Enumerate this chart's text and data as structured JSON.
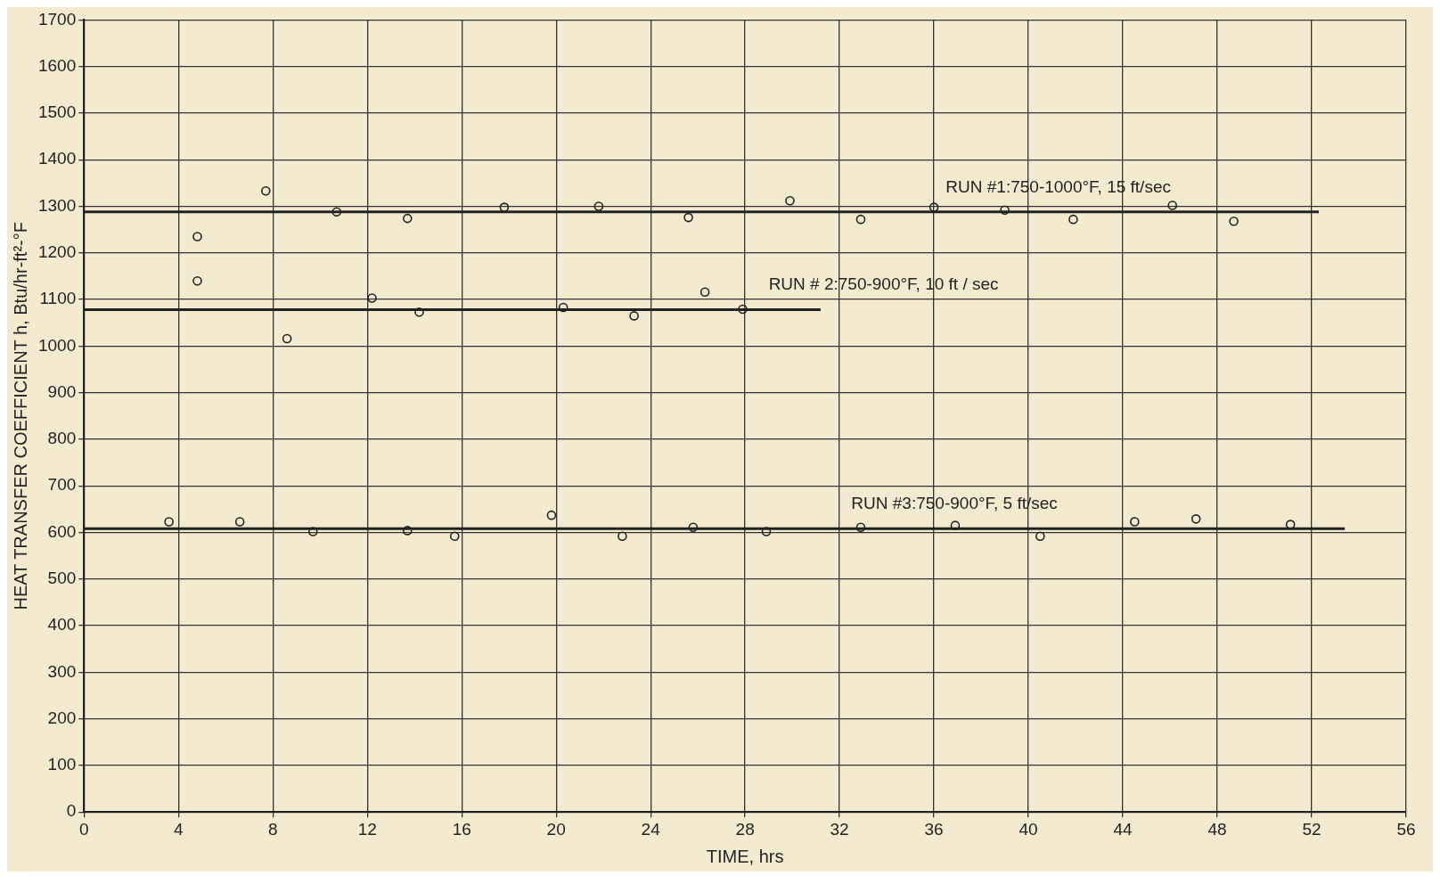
{
  "chart_data": {
    "type": "scatter",
    "xlabel": "TIME, hrs",
    "ylabel": "HEAT TRANSFER COEFFICIENT h, Btu/hr-ft²-°F",
    "xlim": [
      0,
      56
    ],
    "xticks": [
      0,
      4,
      8,
      12,
      16,
      20,
      24,
      28,
      32,
      36,
      40,
      44,
      48,
      52,
      56
    ],
    "ylim": [
      0,
      1700
    ],
    "yticks": [
      0,
      100,
      200,
      300,
      400,
      500,
      600,
      700,
      800,
      900,
      1000,
      1100,
      1200,
      1300,
      1400,
      1500,
      1600,
      1700
    ],
    "grid": true,
    "legend": false,
    "marker": "circle",
    "series": [
      {
        "type": "scatter",
        "color": "#222222",
        "x": [
          4.8,
          7.7,
          10.7,
          13.7,
          17.8,
          21.8,
          25.6,
          29.9,
          32.9,
          36.0,
          39.0,
          41.9,
          46.1,
          48.7
        ],
        "values": [
          1235,
          1333,
          1288,
          1274,
          1298,
          1300,
          1276,
          1312,
          1272,
          1298,
          1292,
          1272,
          1302,
          1268
        ]
      },
      {
        "type": "scatter",
        "color": "#222222",
        "x": [
          4.8,
          8.6,
          12.2,
          14.2,
          20.3,
          23.3,
          26.3,
          27.9
        ],
        "values": [
          1140,
          1016,
          1103,
          1073,
          1083,
          1065,
          1116,
          1079
        ]
      },
      {
        "type": "scatter",
        "color": "#222222",
        "x": [
          3.6,
          6.6,
          9.7,
          13.7,
          15.7,
          19.8,
          22.8,
          25.8,
          28.9,
          32.9,
          36.9,
          40.5,
          44.5,
          47.1,
          51.1
        ],
        "values": [
          623,
          623,
          602,
          604,
          592,
          637,
          592,
          611,
          602,
          611,
          615,
          592,
          623,
          629,
          617
        ]
      },
      {
        "type": "line",
        "color": "#222222",
        "marker": "none",
        "x": [
          0,
          52.3
        ],
        "values": [
          1288,
          1288
        ]
      },
      {
        "type": "line",
        "color": "#222222",
        "marker": "none",
        "x": [
          0,
          31.2
        ],
        "values": [
          1078,
          1078
        ]
      },
      {
        "type": "line",
        "color": "#222222",
        "marker": "none",
        "x": [
          0,
          53.4
        ],
        "values": [
          608,
          608
        ]
      }
    ],
    "annotations": [
      {
        "text": "RUN #1:750-1000°F, 15 ft/sec",
        "x": 36.5,
        "y": 1288
      },
      {
        "text": "RUN # 2:750-900°F, 10 ft / sec",
        "x": 29,
        "y": 1078
      },
      {
        "text": "RUN #3:750-900°F, 5 ft/sec",
        "x": 32.5,
        "y": 608
      }
    ]
  }
}
